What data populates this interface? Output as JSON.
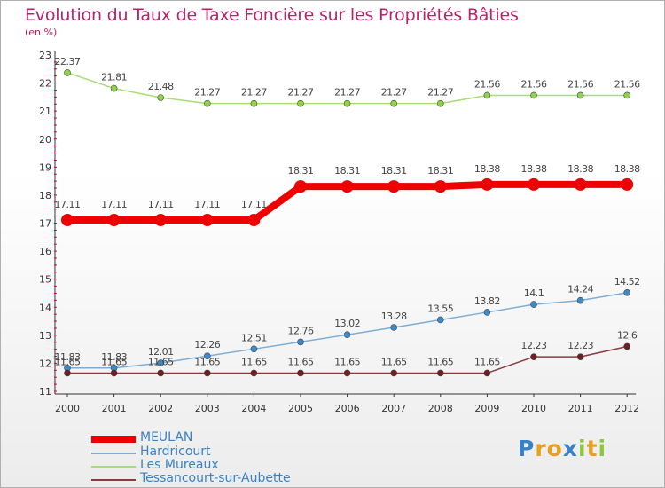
{
  "header": {
    "title": "Evolution du Taux de Taxe Foncière sur les Propriétés Bâties",
    "unit": "(en %)"
  },
  "colors": {
    "title": "#b5246a",
    "axis": "#333333",
    "tick_marks": "#e0004a",
    "legend_text": "#3a82c4"
  },
  "chart_data": {
    "type": "line",
    "title": "Evolution du Taux de Taxe Foncière sur les Propriétés Bâties",
    "subtitle": "(en %)",
    "xlabel": "",
    "ylabel": "",
    "x": [
      "2000",
      "2001",
      "2002",
      "2003",
      "2004",
      "2005",
      "2006",
      "2007",
      "2008",
      "2009",
      "2010",
      "2011",
      "2012"
    ],
    "ylim": [
      11,
      23
    ],
    "yticks": [
      11,
      12,
      13,
      14,
      15,
      16,
      17,
      18,
      19,
      20,
      21,
      22,
      23
    ],
    "grid": false,
    "legend_position": "bottom-left",
    "series": [
      {
        "name": "MEULAN",
        "color": "#ee0000",
        "stroke": "#ee0000",
        "marker": "#ee0000",
        "width": 8,
        "marker_r": 7,
        "values": [
          17.11,
          17.11,
          17.11,
          17.11,
          17.11,
          18.31,
          18.31,
          18.31,
          18.31,
          18.38,
          18.38,
          18.38,
          18.38
        ],
        "labels": [
          "17.11",
          "17.11",
          "17.11",
          "17.11",
          "17.11",
          "18.31",
          "18.31",
          "18.31",
          "18.31",
          "18.38",
          "18.38",
          "18.38",
          "18.38"
        ]
      },
      {
        "name": "Hardricourt",
        "color": "#3d8ac9",
        "stroke": "#7eaed6",
        "marker": "#3d8ac9",
        "width": 1.5,
        "marker_r": 3.5,
        "values": [
          11.83,
          11.83,
          12.01,
          12.26,
          12.51,
          12.76,
          13.02,
          13.28,
          13.55,
          13.82,
          14.1,
          14.24,
          14.52
        ],
        "labels": [
          "11.83",
          "11.83",
          "12.01",
          "12.26",
          "12.51",
          "12.76",
          "13.02",
          "13.28",
          "13.55",
          "13.82",
          "14.1",
          "14.24",
          "14.52"
        ]
      },
      {
        "name": "Les Mureaux",
        "color": "#8ed34a",
        "stroke": "#a8dc78",
        "marker": "#8ed34a",
        "width": 1.5,
        "marker_r": 3.5,
        "values": [
          22.37,
          21.81,
          21.48,
          21.27,
          21.27,
          21.27,
          21.27,
          21.27,
          21.27,
          21.56,
          21.56,
          21.56,
          21.56
        ],
        "labels": [
          "22.37",
          "21.81",
          "21.48",
          "21.27",
          "21.27",
          "21.27",
          "21.27",
          "21.27",
          "21.27",
          "21.56",
          "21.56",
          "21.56",
          "21.56"
        ]
      },
      {
        "name": "Tessancourt-sur-Aubette",
        "color": "#6e1f24",
        "stroke": "#8a3a3e",
        "marker": "#6e1f24",
        "width": 1.5,
        "marker_r": 3.5,
        "values": [
          11.65,
          11.65,
          11.65,
          11.65,
          11.65,
          11.65,
          11.65,
          11.65,
          11.65,
          11.65,
          12.23,
          12.23,
          12.6
        ],
        "labels": [
          "11.65",
          "11.65",
          "11.65",
          "11.65",
          "11.65",
          "11.65",
          "11.65",
          "11.65",
          "11.65",
          "11.65",
          "12.23",
          "12.23",
          "12.6"
        ]
      }
    ]
  },
  "legend": [
    {
      "label": "MEULAN"
    },
    {
      "label": "Hardricourt"
    },
    {
      "label": "Les Mureaux"
    },
    {
      "label": "Tessancourt-sur-Aubette"
    }
  ],
  "logo": {
    "text": "Proxiti",
    "letters": [
      {
        "ch": "P",
        "color": "#3a82c4"
      },
      {
        "ch": "r",
        "color": "#e8a020"
      },
      {
        "ch": "o",
        "color": "#e8a020"
      },
      {
        "ch": "x",
        "color": "#3a82c4"
      },
      {
        "ch": "i",
        "color": "#8ec63f"
      },
      {
        "ch": "t",
        "color": "#e8a020"
      },
      {
        "ch": "i",
        "color": "#8ec63f"
      }
    ]
  }
}
